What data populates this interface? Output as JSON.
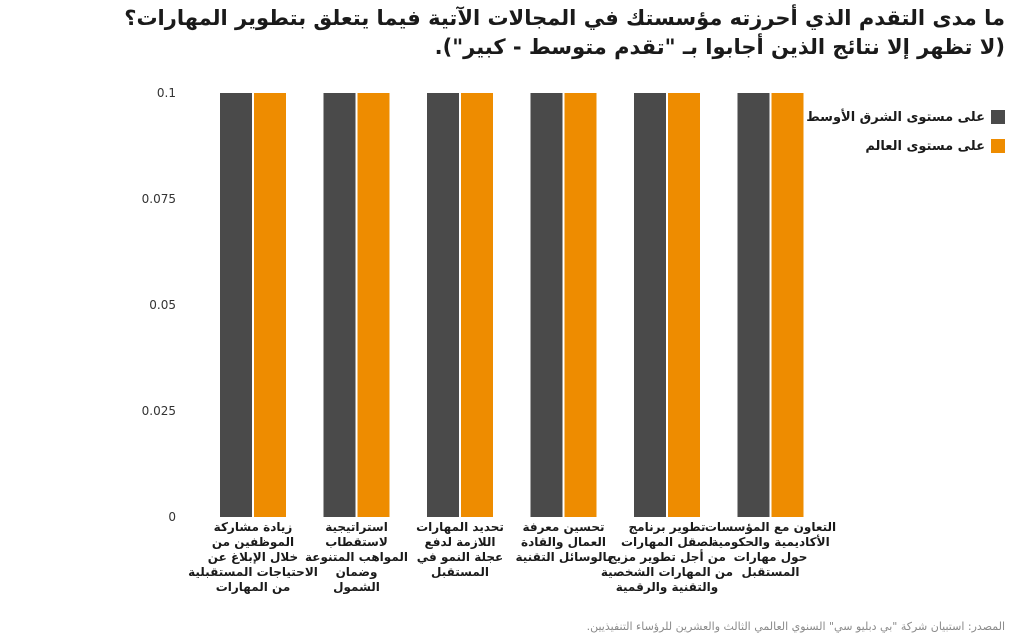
{
  "title_lines": [
    "ما مدى التقدم الذي أحرزته مؤسستك في المجالات الآتية فيما يتعلق بتطوير المهارات؟",
    "(لا تظهر إلا نتائج الذين أجابوا بـ \"تقدم متوسط - كبير\")."
  ],
  "source": "المصدر: استبيان شركة \"بي دبليو سي\" السنوي العالمي الثالث والعشرين للرؤساء التنفيذيين.",
  "colors": {
    "series_1": "#4a4a4a",
    "series_2": "#ee8c00",
    "axis_text": "#333333"
  },
  "chart_data": {
    "type": "bar",
    "categories": [
      "زيادة مشاركة الموظفين من خلال الإبلاغ عن الاحتياجات المستقبلية من المهارات",
      "استراتيجية لاستقطاب المواهب المتنوعة وضمان الشمول",
      "تحديد المهارات اللازمة لدفع عجلة النمو في المستقبل",
      "تحسين معرفة العمال والقادة بالوسائل التقنية",
      "تطوير برنامج لصقل المهارات من أجل تطوير مزيج من المهارات الشخصية والتقنية والرقمية",
      "التعاون مع المؤسسات الأكاديمية والحكومية حول مهارات المستقبل"
    ],
    "category_lines": [
      [
        "زيادة مشاركة",
        "الموظفين من",
        "خلال الإبلاغ عن",
        "الاحتياجات المستقبلية",
        "من المهارات"
      ],
      [
        "استراتيجية",
        "لاستقطاب",
        "المواهب المتنوعة",
        "وضمان",
        "الشمول"
      ],
      [
        "تحديد المهارات",
        "اللازمة لدفع",
        "عجلة النمو في",
        "المستقبل"
      ],
      [
        "تحسين معرفة",
        "العمال والقادة",
        "بالوسائل التقنية"
      ],
      [
        "تطوير برنامج",
        "لصقل المهارات",
        "من أجل تطوير مزيج",
        "من المهارات الشخصية",
        "والتقنية والرقمية"
      ],
      [
        "التعاون مع المؤسسات",
        "الأكاديمية والحكومية",
        "حول مهارات",
        "المستقبل"
      ]
    ],
    "series": [
      {
        "name": "على مستوى الشرق الأوسط",
        "values": [
          0.1,
          0.1,
          0.1,
          0.1,
          0.1,
          0.1
        ]
      },
      {
        "name": "على مستوى العالم",
        "values": [
          0.1,
          0.1,
          0.1,
          0.1,
          0.1,
          0.1
        ]
      }
    ],
    "yticks": [
      "0",
      "0.025",
      "0.05",
      "0.075",
      "0.1"
    ],
    "ylim": [
      0,
      0.1
    ],
    "legend": "top-right"
  }
}
